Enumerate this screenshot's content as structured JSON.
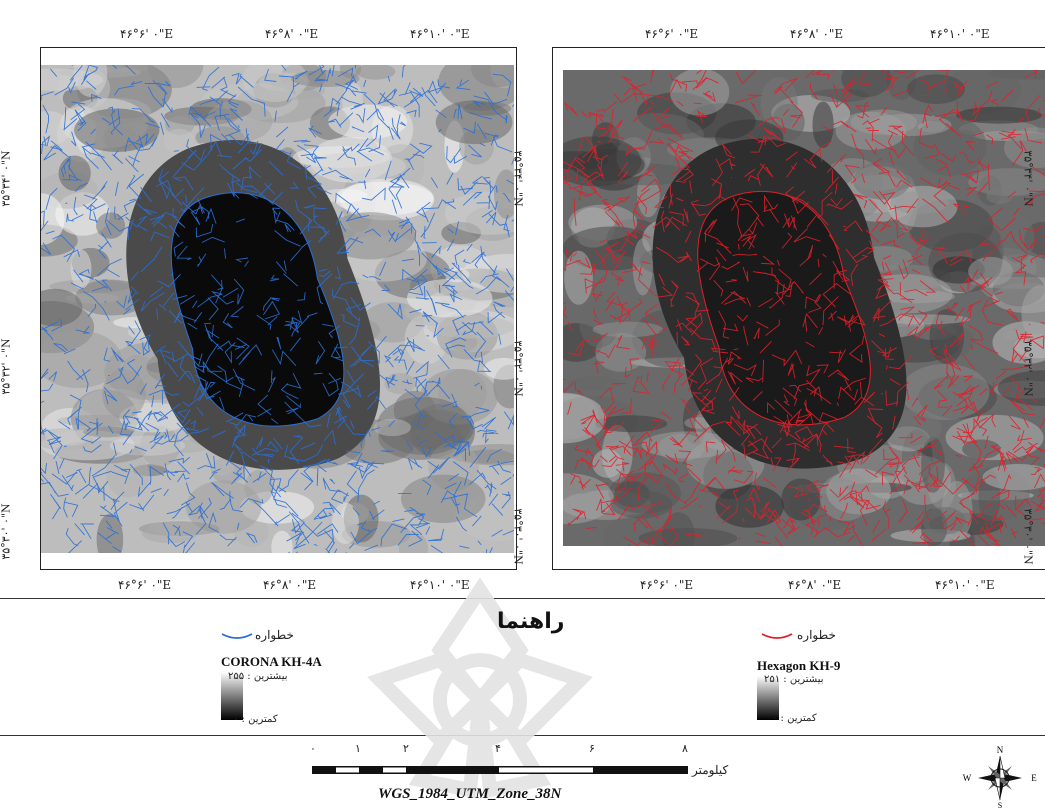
{
  "left_map": {
    "stream_color": "#2a6fd6",
    "top_ticks": [
      "۴۶°۶' ۰\"E",
      "۴۶°۸' ۰\"E",
      "۴۶°۱۰' ۰\"E"
    ],
    "bottom_ticks": [
      "۴۶°۶' ۰\"E",
      "۴۶°۸' ۰\"E",
      "۴۶°۱۰' ۰\"E"
    ],
    "left_ticks": [
      "۳۵°۳۴' ۰\"N",
      "۳۵°۳۲' ۰\"N",
      "۳۵°۳۰' ۰\"N"
    ],
    "right_ticks": [
      "۳۵°۳۴' ۰\"N",
      "۳۵°۳۲' ۰\"N",
      "۳۵°۳۰' ۰\"N"
    ]
  },
  "right_map": {
    "stream_color": "#e0202a",
    "top_ticks": [
      "۴۶°۶' ۰\"E",
      "۴۶°۸' ۰\"E",
      "۴۶°۱۰' ۰\"E"
    ],
    "bottom_ticks": [
      "۴۶°۶' ۰\"E",
      "۴۶°۸' ۰\"E",
      "۴۶°۱۰' ۰\"E"
    ],
    "right_ticks": [
      "۳۵°۳۴' ۰\"N",
      "۳۵°۳۲' ۰\"N",
      "۳۵°۳۰' ۰\"N"
    ]
  },
  "legend": {
    "title": "راهنما",
    "left": {
      "stream_label": "خطواره",
      "sensor": "CORONA KH-4A",
      "max": "بیشترین : ۲۵۵",
      "min": "کمترین : ۰",
      "color": "#2a6fd6"
    },
    "right": {
      "stream_label": "خطواره",
      "sensor": "Hexagon KH-9",
      "max": "بیشترین : ۲۵۱",
      "min": "کمترین : ۰",
      "color": "#e0202a"
    }
  },
  "scalebar": {
    "labels": [
      "۰",
      "۱",
      "۲",
      "۴",
      "۶",
      "۸"
    ],
    "unit": "کیلومتر"
  },
  "projection": "WGS_1984_UTM_Zone_38N",
  "north_arrow": {
    "N": "N",
    "S": "S",
    "E": "E",
    "W": "W"
  }
}
